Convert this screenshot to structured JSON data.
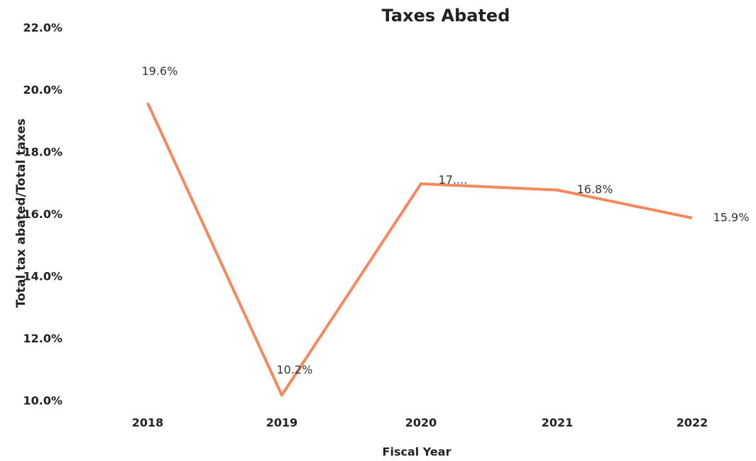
{
  "chart_data": {
    "type": "line",
    "title": "Taxes Abated",
    "x_label": "Fiscal Year",
    "y_label": "Total tax abated/Total taxes",
    "categories": [
      "2018",
      "2019",
      "2020",
      "2021",
      "2022"
    ],
    "series": [
      {
        "name": "Taxes Abated",
        "color": "#f4895f",
        "values": [
          19.6,
          10.2,
          17.0,
          16.8,
          15.9
        ],
        "value_labels": [
          "19.6%",
          "10.2%",
          "17....",
          "16.8%",
          "15.9%"
        ]
      }
    ],
    "ylim": [
      10,
      22
    ],
    "yticks": [
      {
        "value": 10,
        "label": "10.0%"
      },
      {
        "value": 12,
        "label": "12.0%"
      },
      {
        "value": 14,
        "label": "14.0%"
      },
      {
        "value": 16,
        "label": "16.0%"
      },
      {
        "value": 18,
        "label": "18.0%"
      },
      {
        "value": 20,
        "label": "20.0%"
      },
      {
        "value": 22,
        "label": "22.0%"
      }
    ],
    "grid": false
  }
}
